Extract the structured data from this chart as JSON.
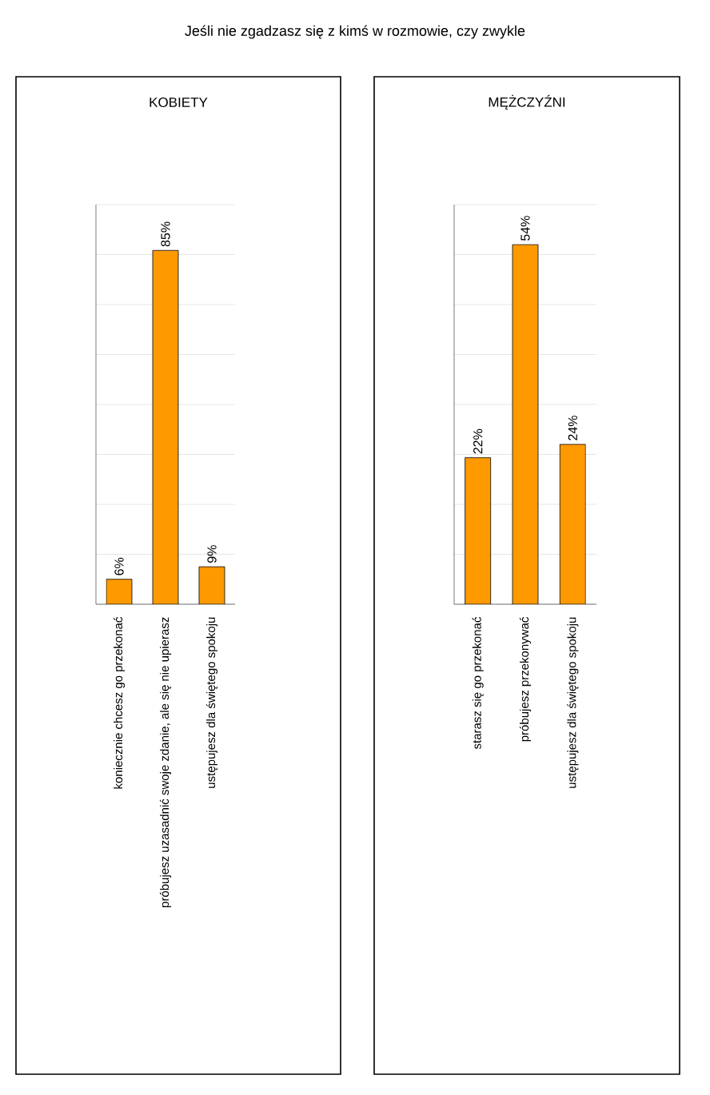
{
  "chart_data": [
    {
      "type": "bar",
      "title": "KOBIETY",
      "annotations": [
        "Jeśli nie zgadzasz się z kimś w rozmowie, czy zwykle"
      ],
      "categories": [
        "koniecznie chcesz go przekonać",
        "próbujesz uzasadnić swoje zdanie, ale się nie upierasz",
        "ustępujesz dla świętego spokoju"
      ],
      "values": [
        6,
        85,
        9
      ],
      "value_labels": [
        "6%",
        "85%",
        "9%"
      ],
      "color": "#ff9900",
      "ylim": [
        0,
        96
      ],
      "yticks": [
        {
          "value": 0,
          "label": null
        },
        {
          "value": 12,
          "label": null
        },
        {
          "value": 24,
          "label": null
        },
        {
          "value": 36,
          "label": null
        },
        {
          "value": 48,
          "label": null
        },
        {
          "value": 60,
          "label": null
        },
        {
          "value": 72,
          "label": null
        },
        {
          "value": 84,
          "label": null
        },
        {
          "value": 96,
          "label": null
        }
      ],
      "grid": "y"
    },
    {
      "type": "bar",
      "title": "MĘŻCZYŹNI",
      "categories": [
        "starasz się go przekonać",
        "próbujesz przekonywać",
        "ustępujesz dla świętego spokoju"
      ],
      "values": [
        22,
        54,
        24
      ],
      "value_labels": [
        "22%",
        "54%",
        "24%"
      ],
      "color": "#ff9900",
      "ylim": [
        0,
        60
      ],
      "yticks": [
        {
          "value": 0,
          "label": null
        },
        {
          "value": 7.5,
          "label": null
        },
        {
          "value": 15,
          "label": null
        },
        {
          "value": 22.5,
          "label": null
        },
        {
          "value": 30,
          "label": null
        },
        {
          "value": 37.5,
          "label": null
        },
        {
          "value": 45,
          "label": null
        },
        {
          "value": 52.5,
          "label": null
        },
        {
          "value": 60,
          "label": null
        }
      ],
      "grid": "y"
    }
  ]
}
